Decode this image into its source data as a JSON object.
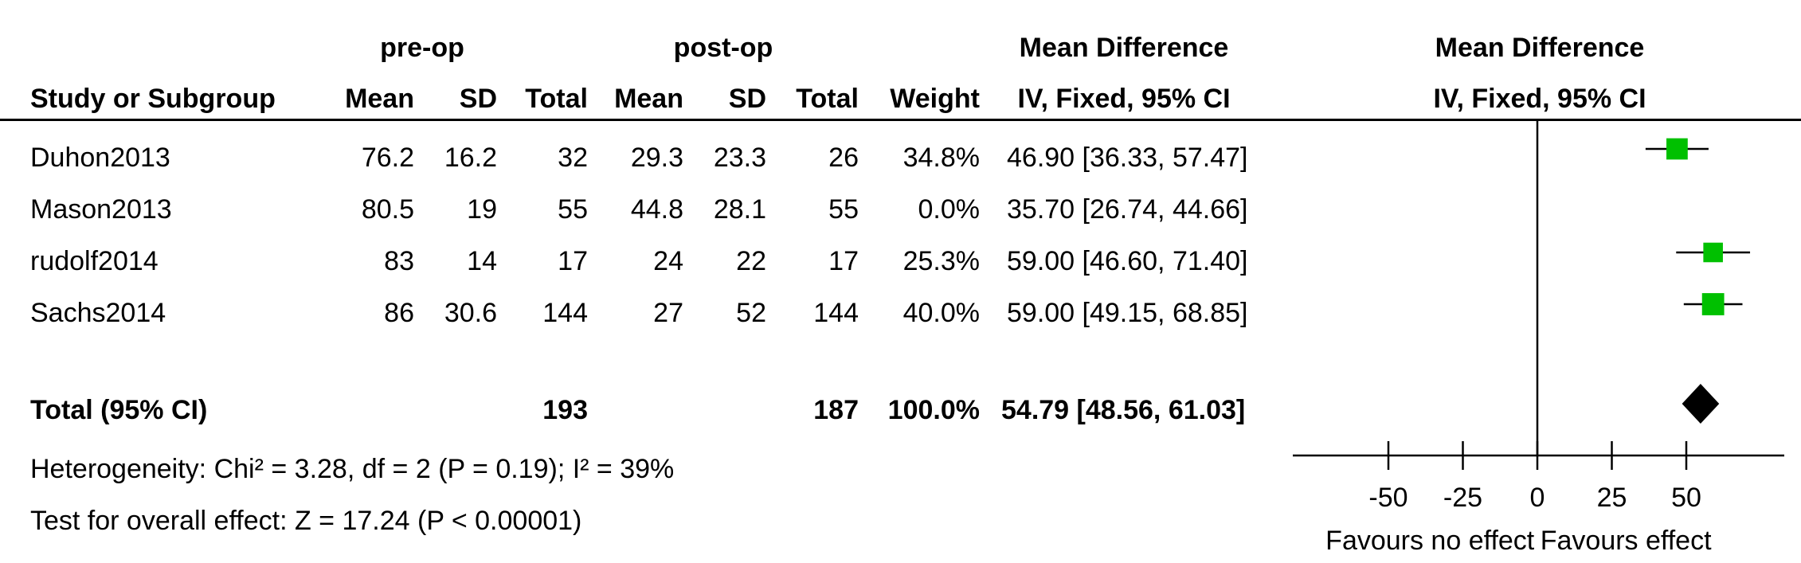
{
  "headers": {
    "group_pre": "pre-op",
    "group_post": "post-op",
    "md_title": "Mean Difference",
    "md_subtitle": "IV, Fixed, 95% CI",
    "plot_title": "Mean Difference",
    "plot_subtitle": "IV, Fixed, 95% CI",
    "study": "Study or Subgroup",
    "mean_pre": "Mean",
    "sd_pre": "SD",
    "total_pre": "Total",
    "mean_post": "Mean",
    "sd_post": "SD",
    "total_post": "Total",
    "weight": "Weight"
  },
  "rows": [
    {
      "study": "Duhon2013",
      "mean_pre": "76.2",
      "sd_pre": "16.2",
      "total_pre": "32",
      "mean_post": "29.3",
      "sd_post": "23.3",
      "total_post": "26",
      "weight": "34.8%",
      "md": "46.90 [36.33, 57.47]"
    },
    {
      "study": "Mason2013",
      "mean_pre": "80.5",
      "sd_pre": "19",
      "total_pre": "55",
      "mean_post": "44.8",
      "sd_post": "28.1",
      "total_post": "55",
      "weight": "0.0%",
      "md": "35.70 [26.74, 44.66]"
    },
    {
      "study": "rudolf2014",
      "mean_pre": "83",
      "sd_pre": "14",
      "total_pre": "17",
      "mean_post": "24",
      "sd_post": "22",
      "total_post": "17",
      "weight": "25.3%",
      "md": "59.00 [46.60, 71.40]"
    },
    {
      "study": "Sachs2014",
      "mean_pre": "86",
      "sd_pre": "30.6",
      "total_pre": "144",
      "mean_post": "27",
      "sd_post": "52",
      "total_post": "144",
      "weight": "40.0%",
      "md": "59.00 [49.15, 68.85]"
    }
  ],
  "total": {
    "label": "Total (95% CI)",
    "total_pre": "193",
    "total_post": "187",
    "weight": "100.0%",
    "md": "54.79 [48.56, 61.03]"
  },
  "heterogeneity": "Heterogeneity: Chi² = 3.28, df = 2 (P = 0.19); I² = 39%",
  "overall_effect": "Test for overall effect: Z = 17.24 (P < 0.00001)",
  "chart_data": {
    "type": "forest",
    "xlim": [
      -75,
      75
    ],
    "xticks": [
      -50,
      -25,
      0,
      25,
      50
    ],
    "xtick_labels": [
      "-50",
      "-25",
      "0",
      "25",
      "50"
    ],
    "xlabel_left": "Favours no effect",
    "xlabel_right": "Favours effect",
    "studies": [
      {
        "name": "Duhon2013",
        "estimate": 46.9,
        "lower": 36.33,
        "upper": 57.47,
        "weight": 34.8
      },
      {
        "name": "Mason2013",
        "estimate": 35.7,
        "lower": 26.74,
        "upper": 44.66,
        "weight": 0.0
      },
      {
        "name": "rudolf2014",
        "estimate": 59.0,
        "lower": 46.6,
        "upper": 71.4,
        "weight": 25.3
      },
      {
        "name": "Sachs2014",
        "estimate": 59.0,
        "lower": 49.15,
        "upper": 68.85,
        "weight": 40.0
      }
    ],
    "pooled": {
      "estimate": 54.79,
      "lower": 48.56,
      "upper": 61.03
    },
    "colors": {
      "marker": "#00c000",
      "line": "#000000",
      "diamond": "#000000"
    }
  }
}
